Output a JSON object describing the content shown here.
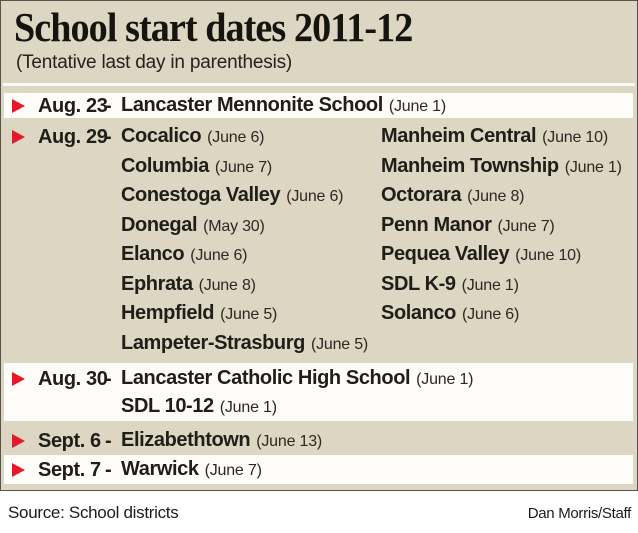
{
  "header": {
    "title": "School start dates 2011-12",
    "subtitle": "(Tentative last day in parenthesis)"
  },
  "dash": "-",
  "bullet_icon": "red-triangle-right",
  "colors": {
    "panel_background": "#dcd6c3",
    "stripe_white": "#fdfcf8",
    "bullet_red": "#e6192b",
    "text": "#1f1e19",
    "border": "#56544a"
  },
  "groups": [
    {
      "date": "Aug. 23",
      "left": [
        {
          "name": "Lancaster Mennonite School",
          "last": "(June 1)"
        }
      ]
    },
    {
      "date": "Aug. 29",
      "left": [
        {
          "name": "Cocalico",
          "last": "(June 6)"
        },
        {
          "name": "Columbia",
          "last": "(June 7)"
        },
        {
          "name": "Conestoga Valley",
          "last": "(June 6)"
        },
        {
          "name": "Donegal",
          "last": "(May 30)"
        },
        {
          "name": "Elanco",
          "last": "(June 6)"
        },
        {
          "name": "Ephrata",
          "last": "(June 8)"
        },
        {
          "name": "Hempfield",
          "last": "(June 5)"
        },
        {
          "name": "Lampeter-Strasburg",
          "last": "(June 5)"
        }
      ],
      "right": [
        {
          "name": "Manheim Central",
          "last": "(June 10)"
        },
        {
          "name": "Manheim Township",
          "last": "(June 1)"
        },
        {
          "name": "Octorara",
          "last": "(June 8)"
        },
        {
          "name": "Penn Manor",
          "last": "(June 7)"
        },
        {
          "name": "Pequea Valley",
          "last": "(June 10)"
        },
        {
          "name": "SDL K-9",
          "last": "(June 1)"
        },
        {
          "name": "Solanco",
          "last": "(June 6)"
        }
      ]
    },
    {
      "date": "Aug. 30",
      "left": [
        {
          "name": "Lancaster Catholic High School",
          "last": "(June 1)"
        },
        {
          "name": "SDL 10-12",
          "last": "(June 1)"
        }
      ]
    },
    {
      "date": "Sept. 6",
      "left": [
        {
          "name": "Elizabethtown",
          "last": "(June 13)"
        }
      ]
    },
    {
      "date": "Sept. 7",
      "left": [
        {
          "name": "Warwick",
          "last": "(June 7)"
        }
      ]
    }
  ],
  "footer": {
    "source": "Source: School districts",
    "credit": "Dan Morris/Staff"
  }
}
